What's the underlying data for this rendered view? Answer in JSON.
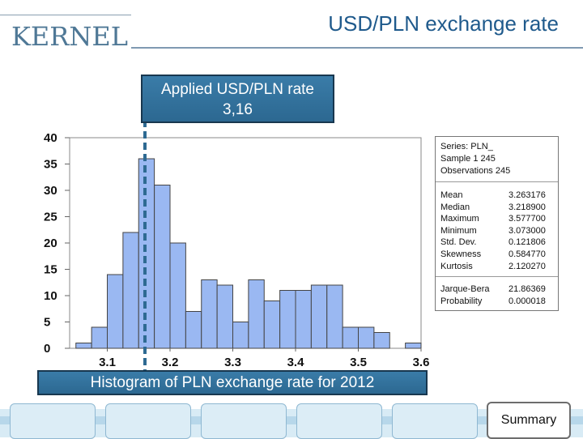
{
  "header": {
    "logo_text": "KERNEL",
    "title": "USD/PLN exchange rate"
  },
  "callouts": {
    "applied_rate_label": "Applied USD/PLN rate",
    "applied_rate_value": "3,16",
    "histogram_caption": "Histogram of PLN exchange rate for 2012"
  },
  "chart_data": {
    "type": "bar",
    "title": "",
    "xlabel": "",
    "ylabel": "",
    "bin_width": 0.025,
    "bins_start": [
      3.05,
      3.075,
      3.1,
      3.125,
      3.15,
      3.175,
      3.2,
      3.225,
      3.25,
      3.275,
      3.3,
      3.325,
      3.35,
      3.375,
      3.4,
      3.425,
      3.45,
      3.475,
      3.5,
      3.525,
      3.55,
      3.575
    ],
    "values": [
      1,
      4,
      14,
      22,
      36,
      31,
      20,
      7,
      13,
      12,
      5,
      13,
      9,
      11,
      11,
      12,
      12,
      4,
      4,
      3,
      0,
      1
    ],
    "xticks": [
      "3.1",
      "3.2",
      "3.3",
      "3.4",
      "3.5",
      "3.6"
    ],
    "xtick_values": [
      3.1,
      3.2,
      3.3,
      3.4,
      3.5,
      3.6
    ],
    "yticks": [
      "0",
      "5",
      "10",
      "15",
      "20",
      "25",
      "30",
      "35",
      "40"
    ],
    "xlim": [
      3.04,
      3.6
    ],
    "ylim": [
      0,
      40
    ],
    "marker_value": 3.16,
    "bar_color": "#9ab8f2",
    "marker_color": "#2e6a92"
  },
  "stats": {
    "series_line": "Series: PLN_",
    "sample_line": "Sample 1 245",
    "observations_line": "Observations 245",
    "rows": [
      {
        "label": "Mean",
        "value": "3.263176"
      },
      {
        "label": "Median",
        "value": "3.218900"
      },
      {
        "label": "Maximum",
        "value": "3.577700"
      },
      {
        "label": "Minimum",
        "value": "3.073000"
      },
      {
        "label": "Std. Dev.",
        "value": "0.121806"
      },
      {
        "label": "Skewness",
        "value": "0.584770"
      },
      {
        "label": "Kurtosis",
        "value": "2.120270"
      }
    ],
    "jb_rows": [
      {
        "label": "Jarque-Bera",
        "value": "21.86369"
      },
      {
        "label": "Probability",
        "value": "0.000018"
      }
    ]
  },
  "footer": {
    "summary_label": "Summary"
  }
}
